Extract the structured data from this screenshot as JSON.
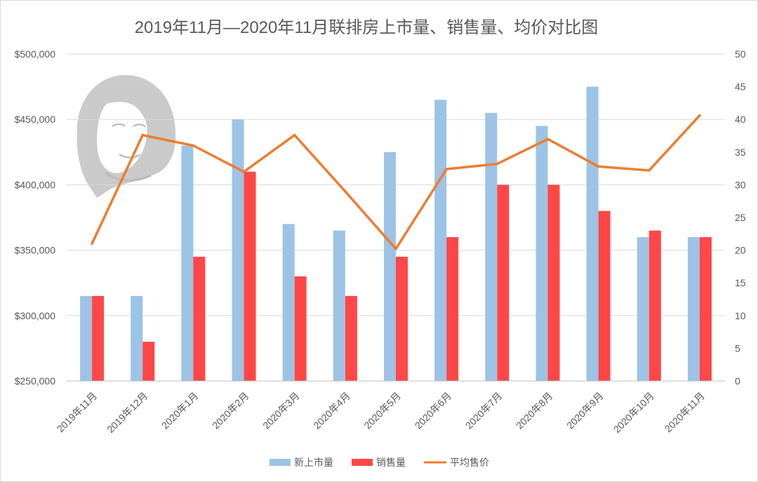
{
  "chart_data": {
    "type": "bar",
    "title": "2019年11月—2020年11月联排房上市量、销售量、均价对比图",
    "categories": [
      "2019年11月",
      "2019年12月",
      "2020年1月",
      "2020年2月",
      "2020年3月",
      "2020年4月",
      "2020年5月",
      "2020年6月",
      "2020年7月",
      "2020年8月",
      "2020年9月",
      "2020年10月",
      "2020年11月"
    ],
    "series": [
      {
        "name": "新上市量",
        "type": "bar",
        "axis": "right",
        "color": "#9DC3E6",
        "values": [
          13,
          13,
          36,
          40,
          24,
          23,
          35,
          43,
          41,
          39,
          45,
          22,
          22
        ]
      },
      {
        "name": "销售量",
        "type": "bar",
        "axis": "right",
        "color": "#FF4747",
        "values": [
          13,
          6,
          19,
          32,
          16,
          13,
          19,
          22,
          30,
          30,
          26,
          23,
          22
        ]
      },
      {
        "name": "平均售价",
        "type": "line",
        "axis": "left",
        "color": "#ED7D31",
        "values": [
          355000,
          438000,
          430000,
          410000,
          438000,
          395000,
          351000,
          412000,
          416000,
          435000,
          414000,
          411000,
          453000
        ]
      }
    ],
    "y_left": {
      "min": 250000,
      "max": 500000,
      "step": 50000,
      "ticks": [
        "$250,000",
        "$300,000",
        "$350,000",
        "$400,000",
        "$450,000",
        "$500,000"
      ]
    },
    "y_right": {
      "min": 0,
      "max": 50,
      "step": 5,
      "ticks": [
        "0",
        "5",
        "10",
        "15",
        "20",
        "25",
        "30",
        "35",
        "40",
        "45",
        "50"
      ]
    },
    "grid": true,
    "legend_position": "bottom"
  },
  "colors": {
    "bar_new": "#9DC3E6",
    "bar_sold": "#FF4747",
    "line_price": "#ED7D31",
    "grid": "#d9d9d9",
    "text": "#595959"
  },
  "decoration": {
    "icon": "woman-portrait-icon"
  }
}
